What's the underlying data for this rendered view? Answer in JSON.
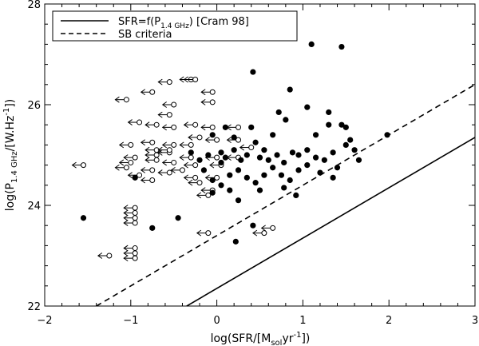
{
  "chart_data": {
    "type": "scatter",
    "xlabel": "log(SFR/[M",
    "xlabel_sub": "sol",
    "xlabel_tail": "yr",
    "xlabel_sup": "-1",
    "xlabel_close": "])",
    "ylabel": "log(P",
    "ylabel_sub": "1.4 GHz",
    "ylabel_mid": "/[W.Hz",
    "ylabel_sup": "-1",
    "ylabel_close": "])",
    "xlim": [
      -2,
      3
    ],
    "ylim": [
      22,
      28
    ],
    "xticks": [
      -2,
      -1,
      0,
      1,
      2,
      3
    ],
    "yticks": [
      22,
      24,
      26,
      28
    ],
    "legend_position": "top-left",
    "legend": [
      {
        "style": "solid",
        "text_main": "SFR=f(P",
        "text_sub": "1.4 GHz",
        "text_tail": ") [Cram 98]"
      },
      {
        "style": "dashed",
        "text_main": "SB criteria",
        "text_sub": "",
        "text_tail": ""
      }
    ],
    "lines": [
      {
        "name": "SFR=f(P1.4 GHz) [Cram 98]",
        "style": "solid",
        "slope": 1,
        "intercept": 22.35
      },
      {
        "name": "SB criteria",
        "style": "dashed",
        "slope": 1,
        "intercept": 23.4
      }
    ],
    "detections": [
      [
        -1.55,
        23.75
      ],
      [
        -0.95,
        24.55
      ],
      [
        -0.75,
        23.55
      ],
      [
        -0.45,
        23.75
      ],
      [
        0.22,
        23.28
      ],
      [
        0.42,
        23.6
      ],
      [
        0.42,
        26.65
      ],
      [
        0.85,
        26.3
      ],
      [
        1.1,
        27.2
      ],
      [
        1.45,
        27.15
      ],
      [
        1.05,
        25.95
      ],
      [
        0.72,
        25.85
      ],
      [
        0.8,
        25.7
      ],
      [
        1.3,
        25.85
      ],
      [
        1.5,
        25.55
      ],
      [
        0.4,
        25.55
      ],
      [
        0.65,
        25.4
      ],
      [
        1.3,
        25.6
      ],
      [
        1.98,
        25.4
      ],
      [
        1.15,
        25.4
      ],
      [
        1.45,
        25.6
      ],
      [
        0.2,
        25.35
      ],
      [
        -0.05,
        25.4
      ],
      [
        0.45,
        25.25
      ],
      [
        -0.3,
        25.05
      ],
      [
        -0.1,
        25.0
      ],
      [
        0.05,
        25.05
      ],
      [
        0.1,
        24.95
      ],
      [
        0.2,
        25.1
      ],
      [
        0.28,
        24.9
      ],
      [
        0.35,
        25.0
      ],
      [
        0.5,
        24.95
      ],
      [
        0.55,
        25.1
      ],
      [
        0.6,
        24.9
      ],
      [
        0.7,
        25.0
      ],
      [
        0.78,
        24.85
      ],
      [
        0.88,
        25.05
      ],
      [
        0.95,
        25.0
      ],
      [
        1.05,
        25.1
      ],
      [
        1.15,
        24.95
      ],
      [
        1.25,
        24.9
      ],
      [
        1.35,
        25.05
      ],
      [
        1.5,
        25.2
      ],
      [
        1.6,
        25.1
      ],
      [
        1.65,
        24.9
      ],
      [
        1.55,
        25.3
      ],
      [
        -0.15,
        24.7
      ],
      [
        -0.05,
        24.5
      ],
      [
        0.05,
        24.4
      ],
      [
        0.15,
        24.6
      ],
      [
        0.25,
        24.7
      ],
      [
        0.35,
        24.55
      ],
      [
        0.45,
        24.45
      ],
      [
        0.55,
        24.6
      ],
      [
        0.65,
        24.75
      ],
      [
        0.75,
        24.6
      ],
      [
        0.85,
        24.5
      ],
      [
        0.95,
        24.7
      ],
      [
        1.05,
        24.8
      ],
      [
        1.2,
        24.65
      ],
      [
        1.4,
        24.75
      ],
      [
        1.35,
        24.55
      ],
      [
        0.5,
        24.3
      ],
      [
        0.78,
        24.35
      ],
      [
        0.92,
        24.2
      ],
      [
        -0.05,
        24.25
      ],
      [
        0.15,
        24.3
      ],
      [
        0.25,
        24.1
      ],
      [
        0.05,
        24.85
      ],
      [
        0.1,
        25.55
      ],
      [
        -0.2,
        24.9
      ]
    ],
    "upper_limits": [
      [
        -1.55,
        24.8
      ],
      [
        -1.05,
        24.75
      ],
      [
        -1.0,
        24.85
      ],
      [
        -0.9,
        24.6
      ],
      [
        -0.9,
        25.65
      ],
      [
        -1.05,
        26.1
      ],
      [
        -1.0,
        25.2
      ],
      [
        -0.95,
        24.95
      ],
      [
        -0.95,
        23.85
      ],
      [
        -0.95,
        23.75
      ],
      [
        -0.95,
        23.95
      ],
      [
        -0.95,
        23.65
      ],
      [
        -0.95,
        23.15
      ],
      [
        -0.95,
        23.05
      ],
      [
        -0.95,
        22.95
      ],
      [
        -1.25,
        23.0
      ],
      [
        -0.75,
        26.25
      ],
      [
        -0.55,
        26.45
      ],
      [
        -0.3,
        26.5
      ],
      [
        -0.25,
        26.5
      ],
      [
        -0.05,
        26.25
      ],
      [
        -0.5,
        26.0
      ],
      [
        -0.55,
        25.8
      ],
      [
        -0.7,
        25.6
      ],
      [
        -0.5,
        25.55
      ],
      [
        -0.75,
        25.25
      ],
      [
        -0.7,
        25.1
      ],
      [
        -0.7,
        24.9
      ],
      [
        -0.75,
        24.7
      ],
      [
        -0.55,
        25.05
      ],
      [
        -0.5,
        24.85
      ],
      [
        -0.5,
        25.2
      ],
      [
        -0.3,
        25.2
      ],
      [
        -0.3,
        24.95
      ],
      [
        -0.25,
        24.8
      ],
      [
        -0.4,
        24.7
      ],
      [
        -0.55,
        24.65
      ],
      [
        -0.25,
        24.55
      ],
      [
        -0.2,
        25.35
      ],
      [
        -0.05,
        25.55
      ],
      [
        -0.25,
        25.6
      ],
      [
        0.0,
        25.3
      ],
      [
        0.0,
        24.95
      ],
      [
        0.05,
        24.8
      ],
      [
        0.0,
        24.55
      ],
      [
        -0.05,
        24.3
      ],
      [
        -0.1,
        24.2
      ],
      [
        -0.2,
        24.45
      ],
      [
        0.25,
        25.55
      ],
      [
        0.25,
        25.3
      ],
      [
        0.25,
        24.95
      ],
      [
        -0.7,
        25.0
      ],
      [
        -0.55,
        25.1
      ],
      [
        -0.75,
        24.5
      ],
      [
        -0.1,
        23.45
      ],
      [
        0.55,
        23.45
      ],
      [
        0.65,
        23.55
      ],
      [
        -0.05,
        26.05
      ],
      [
        0.4,
        25.15
      ]
    ]
  }
}
